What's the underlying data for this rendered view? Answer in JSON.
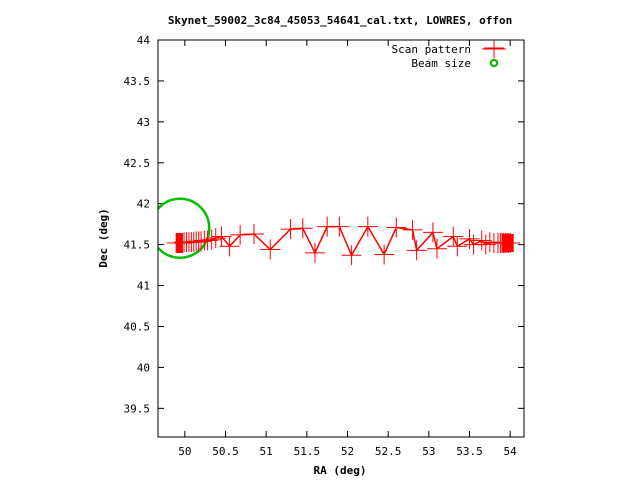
{
  "chart_data": {
    "type": "scatter",
    "title": "Skynet_59002_3c84_45053_54641_cal.txt, LOWRES, offon",
    "xlabel": "RA (deg)",
    "ylabel": "Dec (deg)",
    "xlim": [
      49.67,
      54.17
    ],
    "ylim": [
      39.15,
      44.0
    ],
    "xticks": [
      {
        "value": 50,
        "label": "50"
      },
      {
        "value": 50.5,
        "label": "50.5"
      },
      {
        "value": 51,
        "label": "51"
      },
      {
        "value": 51.5,
        "label": "51.5"
      },
      {
        "value": 52,
        "label": "52"
      },
      {
        "value": 52.5,
        "label": "52.5"
      },
      {
        "value": 53,
        "label": "53"
      },
      {
        "value": 53.5,
        "label": "53.5"
      },
      {
        "value": 54,
        "label": "54"
      }
    ],
    "yticks": [
      {
        "value": 39.5,
        "label": "39.5"
      },
      {
        "value": 40,
        "label": "40"
      },
      {
        "value": 40.5,
        "label": "40.5"
      },
      {
        "value": 41,
        "label": "41"
      },
      {
        "value": 41.5,
        "label": "41.5"
      },
      {
        "value": 42,
        "label": "42"
      },
      {
        "value": 42.5,
        "label": "42.5"
      },
      {
        "value": 43,
        "label": "43"
      },
      {
        "value": 43.5,
        "label": "43.5"
      },
      {
        "value": 44,
        "label": "44"
      }
    ],
    "legend_position": "top-right",
    "series": [
      {
        "name": "Scan pattern",
        "color": "#ff0000",
        "marker": "plus",
        "x": [
          49.9,
          49.92,
          49.95,
          49.97,
          49.99,
          50.02,
          50.05,
          50.08,
          50.11,
          50.14,
          50.17,
          50.2,
          50.24,
          50.28,
          50.33,
          50.38,
          50.45,
          50.55,
          50.68,
          50.85,
          51.05,
          51.3,
          51.45,
          51.6,
          51.75,
          51.9,
          52.05,
          52.25,
          52.45,
          52.6,
          52.8,
          52.85,
          53.05,
          53.1,
          53.3,
          53.35,
          53.5,
          53.55,
          53.65,
          53.7,
          53.75,
          53.8,
          53.85,
          53.88,
          53.9,
          53.92,
          53.94,
          53.96,
          53.98,
          54.0
        ],
        "y": [
          41.52,
          41.52,
          41.52,
          41.52,
          41.53,
          41.53,
          41.53,
          41.53,
          41.53,
          41.54,
          41.54,
          41.54,
          41.55,
          41.55,
          41.56,
          41.58,
          41.6,
          41.48,
          41.62,
          41.63,
          41.44,
          41.69,
          41.7,
          41.4,
          41.72,
          41.72,
          41.37,
          41.72,
          41.38,
          41.71,
          41.68,
          41.43,
          41.65,
          41.45,
          41.6,
          41.48,
          41.57,
          41.5,
          41.55,
          41.5,
          41.53,
          41.52,
          41.52,
          41.52,
          41.52,
          41.52,
          41.52,
          41.52,
          41.52,
          41.52
        ]
      },
      {
        "name": "Beam size",
        "color": "#00c000",
        "marker": "circle-line",
        "center": [
          49.94,
          41.7
        ],
        "radius_deg": 0.36
      }
    ]
  }
}
